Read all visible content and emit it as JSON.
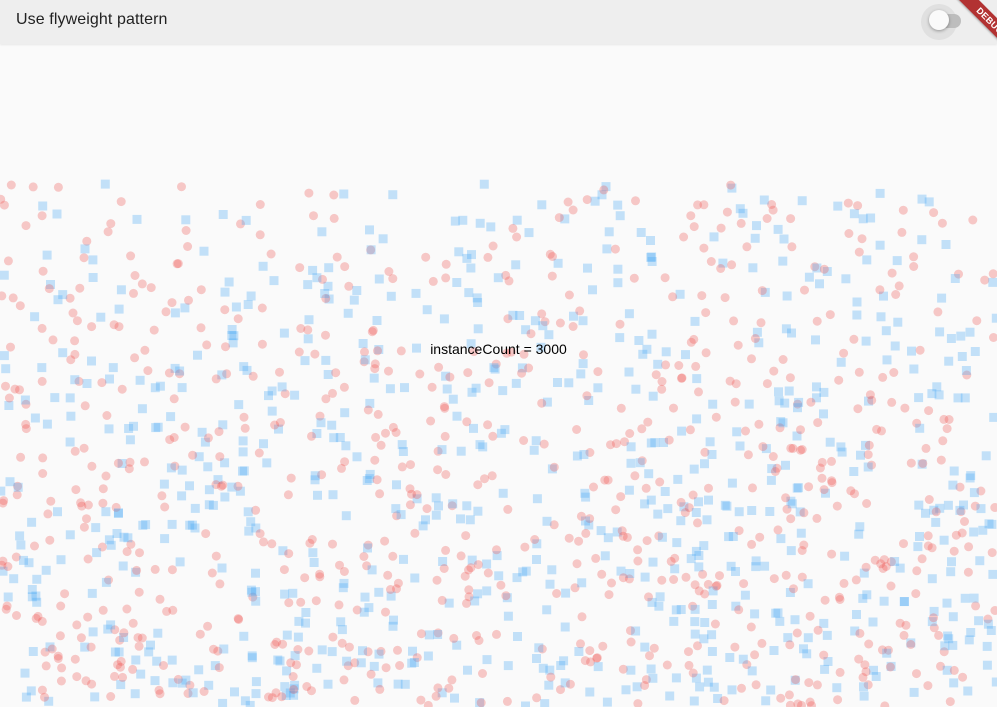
{
  "app_bar": {
    "title": "Use flyweight pattern",
    "toggle": {
      "label": "use-flyweight-toggle",
      "on": false
    }
  },
  "debug_banner": {
    "label": "DEBUG",
    "color": "#b23232"
  },
  "content": {
    "instance_count_text": "instanceCount = 3000",
    "instance_count": 3000,
    "shape_types": [
      "circle",
      "square"
    ],
    "colors": {
      "circle": "#ef5350",
      "square": "#42a5f5"
    }
  }
}
